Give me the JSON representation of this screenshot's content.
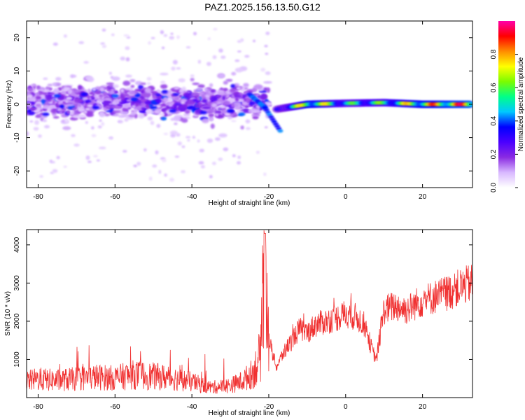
{
  "title": "PAZ1.2025.156.13.50.G12",
  "chart_data": [
    {
      "type": "heatmap",
      "xlabel": "Height of straight line (km)",
      "ylabel": "Frequency (Hz)",
      "xlim": [
        -83,
        33
      ],
      "ylim": [
        -25,
        25
      ],
      "xticks": [
        -80,
        -60,
        -40,
        -20,
        0,
        20
      ],
      "yticks": [
        -20,
        -10,
        0,
        10,
        20
      ],
      "colorbar": {
        "label": "Normalized spectral amplitude",
        "range": [
          0,
          1
        ],
        "ticks": [
          "0.0",
          "0.2",
          "0.4",
          "0.6",
          "0.8"
        ],
        "colors": [
          "#ffffff",
          "#d8b8ff",
          "#8a2be2",
          "#4b00ff",
          "#0000ff",
          "#00c8ff",
          "#00ff88",
          "#7cfc00",
          "#ffff00",
          "#ff8c00",
          "#ff0000",
          "#ff00aa"
        ]
      },
      "features": {
        "scatter_region": {
          "x": [
            -83,
            -20
          ],
          "y": [
            -12,
            8
          ],
          "amplitude": 0.25
        },
        "descending_branch": [
          {
            "x": -25,
            "y": 3
          },
          {
            "x": -21,
            "y": -1
          },
          {
            "x": -17,
            "y": -8
          }
        ],
        "main_tone": [
          {
            "x": -18,
            "y": -1.5,
            "amplitude": 0.35
          },
          {
            "x": -10,
            "y": 0,
            "amplitude": 0.8
          },
          {
            "x": 0,
            "y": 0.3,
            "amplitude": 0.55
          },
          {
            "x": 10,
            "y": 0.5,
            "amplitude": 0.6
          },
          {
            "x": 20,
            "y": 0,
            "amplitude": 0.8
          },
          {
            "x": 33,
            "y": 0,
            "amplitude": 0.9
          }
        ]
      }
    },
    {
      "type": "line",
      "xlabel": "Height of straight line (km)",
      "ylabel": "SNR (10 * v/v)",
      "xlim": [
        -83,
        33
      ],
      "ylim": [
        0,
        4400
      ],
      "xticks": [
        -80,
        -60,
        -40,
        -20,
        0,
        20
      ],
      "yticks": [
        1000,
        2000,
        3000,
        4000
      ],
      "color": "#f03030",
      "series": [
        {
          "x": [
            -83,
            -80,
            -75,
            -70,
            -65,
            -60,
            -55,
            -50,
            -45,
            -40,
            -35,
            -30,
            -27,
            -24,
            -22,
            -21,
            -20,
            -18,
            -16,
            -14,
            -12,
            -10,
            -8,
            -5,
            -2,
            0,
            3,
            5,
            7,
            8,
            10,
            13,
            16,
            19,
            22,
            25,
            28,
            30,
            33
          ],
          "y": [
            400,
            450,
            420,
            460,
            500,
            480,
            560,
            520,
            480,
            380,
            250,
            300,
            400,
            600,
            1100,
            4300,
            1500,
            800,
            1200,
            1500,
            1800,
            1700,
            1900,
            2000,
            2100,
            2200,
            2100,
            1900,
            1200,
            1000,
            2300,
            2400,
            2300,
            2500,
            2600,
            2700,
            2800,
            2900,
            3000
          ]
        }
      ]
    }
  ]
}
